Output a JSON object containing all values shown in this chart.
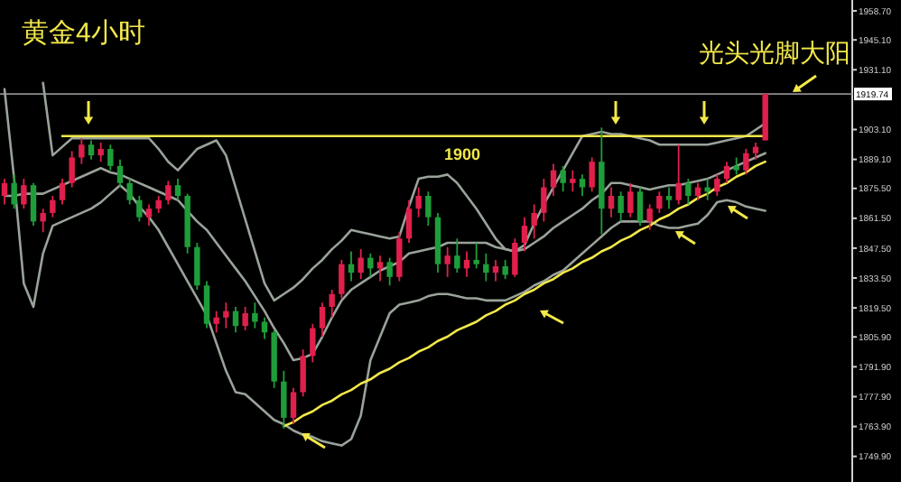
{
  "chart_data": {
    "type": "candlestick",
    "title": "黄金4小时",
    "categories": [
      null,
      null,
      null,
      null,
      null,
      null,
      null,
      null,
      null,
      null,
      null,
      null,
      null,
      null,
      null,
      null,
      null,
      null,
      null,
      null,
      null,
      null,
      null,
      null,
      null,
      null,
      null,
      null,
      null,
      null,
      null,
      null,
      null,
      null,
      null,
      null,
      null,
      null,
      null,
      null,
      null,
      null,
      null,
      null,
      null,
      null,
      null,
      null,
      null,
      null,
      null,
      null,
      null,
      null,
      null,
      null,
      null,
      null,
      null,
      null,
      null,
      null,
      null,
      null,
      null,
      null,
      null,
      null,
      null,
      null,
      null,
      null,
      null,
      null,
      null,
      null,
      null,
      null,
      null,
      null
    ],
    "ohlc": [
      [
        1872,
        1880,
        1868,
        1878
      ],
      [
        1878,
        1882,
        1866,
        1868
      ],
      [
        1868,
        1880,
        1866,
        1877
      ],
      [
        1877,
        1878,
        1858,
        1860
      ],
      [
        1860,
        1866,
        1855,
        1864
      ],
      [
        1864,
        1872,
        1862,
        1870
      ],
      [
        1870,
        1880,
        1868,
        1878
      ],
      [
        1878,
        1893,
        1876,
        1890
      ],
      [
        1890,
        1899,
        1887,
        1896
      ],
      [
        1896,
        1898,
        1889,
        1891
      ],
      [
        1891,
        1897,
        1888,
        1894
      ],
      [
        1894,
        1896,
        1884,
        1886
      ],
      [
        1886,
        1889,
        1876,
        1878
      ],
      [
        1878,
        1880,
        1868,
        1870
      ],
      [
        1870,
        1872,
        1860,
        1862
      ],
      [
        1862,
        1868,
        1858,
        1866
      ],
      [
        1866,
        1872,
        1864,
        1870
      ],
      [
        1870,
        1879,
        1868,
        1877
      ],
      [
        1877,
        1880,
        1870,
        1872
      ],
      [
        1872,
        1873,
        1845,
        1848
      ],
      [
        1848,
        1850,
        1828,
        1830
      ],
      [
        1830,
        1832,
        1810,
        1812
      ],
      [
        1812,
        1818,
        1808,
        1815
      ],
      [
        1815,
        1822,
        1810,
        1818
      ],
      [
        1818,
        1820,
        1808,
        1811
      ],
      [
        1811,
        1820,
        1809,
        1817
      ],
      [
        1817,
        1822,
        1810,
        1813
      ],
      [
        1813,
        1815,
        1805,
        1808
      ],
      [
        1808,
        1809,
        1782,
        1785
      ],
      [
        1785,
        1790,
        1763,
        1768
      ],
      [
        1768,
        1782,
        1765,
        1780
      ],
      [
        1780,
        1800,
        1778,
        1797
      ],
      [
        1797,
        1812,
        1794,
        1810
      ],
      [
        1810,
        1822,
        1806,
        1820
      ],
      [
        1820,
        1828,
        1815,
        1826
      ],
      [
        1826,
        1842,
        1824,
        1840
      ],
      [
        1840,
        1846,
        1832,
        1836
      ],
      [
        1836,
        1847,
        1833,
        1843
      ],
      [
        1843,
        1845,
        1834,
        1838
      ],
      [
        1838,
        1844,
        1832,
        1841
      ],
      [
        1841,
        1843,
        1830,
        1834
      ],
      [
        1834,
        1855,
        1832,
        1852
      ],
      [
        1852,
        1870,
        1850,
        1866
      ],
      [
        1866,
        1876,
        1862,
        1872
      ],
      [
        1872,
        1874,
        1858,
        1862
      ],
      [
        1862,
        1864,
        1836,
        1840
      ],
      [
        1840,
        1848,
        1834,
        1844
      ],
      [
        1844,
        1852,
        1836,
        1838
      ],
      [
        1838,
        1846,
        1834,
        1842
      ],
      [
        1842,
        1850,
        1838,
        1840
      ],
      [
        1840,
        1845,
        1832,
        1836
      ],
      [
        1836,
        1842,
        1832,
        1839
      ],
      [
        1839,
        1842,
        1833,
        1835
      ],
      [
        1835,
        1852,
        1834,
        1850
      ],
      [
        1850,
        1862,
        1846,
        1858
      ],
      [
        1858,
        1868,
        1852,
        1864
      ],
      [
        1864,
        1880,
        1860,
        1876
      ],
      [
        1876,
        1887,
        1872,
        1884
      ],
      [
        1884,
        1886,
        1874,
        1878
      ],
      [
        1878,
        1884,
        1874,
        1880
      ],
      [
        1880,
        1882,
        1872,
        1876
      ],
      [
        1876,
        1890,
        1874,
        1888
      ],
      [
        1888,
        1904,
        1854,
        1866
      ],
      [
        1866,
        1876,
        1862,
        1872
      ],
      [
        1872,
        1874,
        1860,
        1864
      ],
      [
        1864,
        1878,
        1862,
        1874
      ],
      [
        1874,
        1876,
        1858,
        1860
      ],
      [
        1860,
        1868,
        1856,
        1866
      ],
      [
        1866,
        1874,
        1864,
        1872
      ],
      [
        1872,
        1876,
        1866,
        1870
      ],
      [
        1870,
        1896,
        1868,
        1878
      ],
      [
        1878,
        1880,
        1868,
        1872
      ],
      [
        1872,
        1878,
        1870,
        1876
      ],
      [
        1876,
        1880,
        1870,
        1874
      ],
      [
        1874,
        1882,
        1872,
        1880
      ],
      [
        1880,
        1888,
        1878,
        1886
      ],
      [
        1886,
        1890,
        1882,
        1884
      ],
      [
        1884,
        1894,
        1882,
        1892
      ],
      [
        1892,
        1897,
        1889,
        1895
      ],
      [
        1898,
        1919.74,
        1898,
        1919.74
      ]
    ],
    "colors": [
      "#e0204c",
      "#1e9e3a",
      "#e0204c",
      "#1e9e3a",
      "#e0204c",
      "#e0204c",
      "#e0204c",
      "#e0204c",
      "#e0204c",
      "#1e9e3a",
      "#e0204c",
      "#1e9e3a",
      "#1e9e3a",
      "#1e9e3a",
      "#1e9e3a",
      "#e0204c",
      "#e0204c",
      "#e0204c",
      "#1e9e3a",
      "#1e9e3a",
      "#1e9e3a",
      "#1e9e3a",
      "#e0204c",
      "#e0204c",
      "#1e9e3a",
      "#e0204c",
      "#1e9e3a",
      "#1e9e3a",
      "#1e9e3a",
      "#1e9e3a",
      "#e0204c",
      "#e0204c",
      "#e0204c",
      "#e0204c",
      "#e0204c",
      "#e0204c",
      "#1e9e3a",
      "#e0204c",
      "#1e9e3a",
      "#e0204c",
      "#1e9e3a",
      "#e0204c",
      "#e0204c",
      "#e0204c",
      "#1e9e3a",
      "#1e9e3a",
      "#e0204c",
      "#1e9e3a",
      "#e0204c",
      "#1e9e3a",
      "#1e9e3a",
      "#e0204c",
      "#1e9e3a",
      "#e0204c",
      "#e0204c",
      "#e0204c",
      "#e0204c",
      "#e0204c",
      "#1e9e3a",
      "#e0204c",
      "#1e9e3a",
      "#e0204c",
      "#1e9e3a",
      "#e0204c",
      "#1e9e3a",
      "#e0204c",
      "#1e9e3a",
      "#e0204c",
      "#e0204c",
      "#1e9e3a",
      "#e0204c",
      "#1e9e3a",
      "#e0204c",
      "#1e9e3a",
      "#e0204c",
      "#e0204c",
      "#1e9e3a",
      "#e0204c",
      "#e0204c",
      "#e0204c"
    ],
    "series": [
      {
        "type": "line",
        "color": "#9aa39a",
        "values": [
          null,
          null,
          null,
          null,
          1925,
          1891,
          1895,
          1899,
          1899,
          1899,
          1899,
          1899,
          1899,
          1899,
          1899,
          1899,
          1894,
          1888,
          1884,
          1889,
          1894,
          1896,
          1898,
          1891,
          1876,
          1861,
          1846,
          1831,
          1823,
          1826,
          1829,
          1833,
          1838,
          1842,
          1847,
          1851,
          1856,
          1855,
          1854,
          1853,
          1852,
          1853,
          1867,
          1880,
          1881,
          1881,
          1882,
          1878,
          1872,
          1866,
          1859,
          1852,
          1847,
          1846,
          1849,
          1859,
          1868,
          1876,
          1884,
          1892,
          1900,
          1901,
          1902,
          1901,
          1901,
          1900,
          1899,
          1898,
          1896,
          1896,
          1896,
          1896,
          1896,
          1896,
          1897,
          1898,
          1899,
          1900,
          1903,
          1906
        ]
      },
      {
        "type": "line",
        "color": "#9aa39a",
        "values": [
          1872,
          1872,
          1873,
          1873,
          1873,
          1875,
          1877,
          1879,
          1881,
          1883,
          1885,
          1883,
          1882,
          1880,
          1878,
          1876,
          1874,
          1872,
          1870,
          1865,
          1860,
          1856,
          1850,
          1844,
          1838,
          1832,
          1825,
          1818,
          1810,
          1803,
          1795,
          1796,
          1798,
          1806,
          1815,
          1823,
          1828,
          1831,
          1834,
          1837,
          1839,
          1841,
          1845,
          1846,
          1847,
          1848,
          1850,
          1850,
          1850,
          1850,
          1850,
          1848,
          1847,
          1846,
          1847,
          1850,
          1853,
          1857,
          1860,
          1863,
          1866,
          1870,
          1873,
          1878,
          1878,
          1877,
          1876,
          1875,
          1876,
          1877,
          1877,
          1878,
          1879,
          1880,
          1882,
          1884,
          1886,
          1888,
          1890,
          1892
        ]
      },
      {
        "type": "line",
        "color": "#9aa39a",
        "values": [
          1922,
          1880,
          1831,
          1820,
          1845,
          1858,
          1860,
          1862,
          1864,
          1866,
          1869,
          1873,
          1877,
          1873,
          1867,
          1862,
          1856,
          1848,
          1840,
          1832,
          1824,
          1816,
          1803,
          1790,
          1780,
          1779,
          1775,
          1771,
          1767,
          1765,
          1762,
          1760,
          1759,
          1757,
          1756,
          1755,
          1758,
          1769,
          1795,
          1806,
          1817,
          1821,
          1822,
          1823,
          1825,
          1826,
          1826,
          1825,
          1824,
          1824,
          1823,
          1823,
          1823,
          1825,
          1827,
          1830,
          1832,
          1835,
          1837,
          1841,
          1845,
          1849,
          1853,
          1857,
          1860,
          1860,
          1860,
          1860,
          1858,
          1857,
          1857,
          1858,
          1859,
          1863,
          1869,
          1870,
          1869,
          1867,
          1866,
          1865
        ]
      },
      {
        "type": "line",
        "color": "#f2e84a",
        "values": [
          null,
          null,
          null,
          null,
          null,
          null,
          1900,
          1900,
          1900,
          1900,
          1900,
          1900,
          1900,
          1900,
          1900,
          1900,
          1900,
          1900,
          1900,
          1900,
          1900,
          1900,
          1900,
          1900,
          1900,
          1900,
          1900,
          1900,
          1900,
          1900,
          1900,
          1900,
          1900,
          1900,
          1900,
          1900,
          1900,
          1900,
          1900,
          1900,
          1900,
          1900,
          1900,
          1900,
          1900,
          1900,
          1900,
          1900,
          1900,
          1900,
          1900,
          1900,
          1900,
          1900,
          1900,
          1900,
          1900,
          1900,
          1900,
          1900,
          1900,
          1900,
          1900,
          1900,
          1900,
          1900,
          1900,
          1900,
          1900,
          1900,
          1900,
          1900,
          1900,
          1900,
          1900,
          1900,
          1900,
          1900,
          1900,
          1900
        ]
      },
      {
        "type": "line",
        "color": "#f2e84a",
        "values": [
          null,
          null,
          null,
          null,
          null,
          null,
          null,
          null,
          null,
          null,
          null,
          null,
          null,
          null,
          null,
          null,
          null,
          null,
          null,
          null,
          null,
          null,
          null,
          null,
          null,
          null,
          null,
          null,
          null,
          1764,
          1766,
          1769,
          1771,
          1774,
          1776,
          1779,
          1781,
          1784,
          1786,
          1789,
          1791,
          1794,
          1796,
          1799,
          1801,
          1804,
          1806,
          1809,
          1811,
          1813,
          1816,
          1818,
          1821,
          1823,
          1826,
          1828,
          1831,
          1833,
          1836,
          1838,
          1841,
          1843,
          1846,
          1848,
          1851,
          1853,
          1856,
          1858,
          1861,
          1863,
          1866,
          1868,
          1871,
          1873,
          1876,
          1878,
          1881,
          1883,
          1886,
          1888
        ]
      }
    ],
    "ref_lines": [
      {
        "axis": "y",
        "value": 1919.74,
        "label": "1919.74",
        "color": "#8c8c8c"
      }
    ],
    "annotations": [
      {
        "text": "1900",
        "y": 1900
      },
      "光头光脚大阳"
    ],
    "ylim": [
      1737.9,
      1963.8
    ],
    "yticks": [
      {
        "value": 1958.7,
        "label": "1958.70"
      },
      {
        "value": 1945.1,
        "label": "1945.10"
      },
      {
        "value": 1931.1,
        "label": "1931.10"
      },
      {
        "value": 1903.1,
        "label": "1903.10"
      },
      {
        "value": 1889.1,
        "label": "1889.10"
      },
      {
        "value": 1875.5,
        "label": "1875.50"
      },
      {
        "value": 1861.5,
        "label": "1861.50"
      },
      {
        "value": 1847.5,
        "label": "1847.50"
      },
      {
        "value": 1833.5,
        "label": "1833.50"
      },
      {
        "value": 1819.5,
        "label": "1819.50"
      },
      {
        "value": 1805.9,
        "label": "1805.90"
      },
      {
        "value": 1791.9,
        "label": "1791.90"
      },
      {
        "value": 1777.9,
        "label": "1777.90"
      },
      {
        "value": 1763.9,
        "label": "1763.90"
      },
      {
        "value": 1749.9,
        "label": "1749.90"
      }
    ],
    "tick_labels": "y"
  }
}
